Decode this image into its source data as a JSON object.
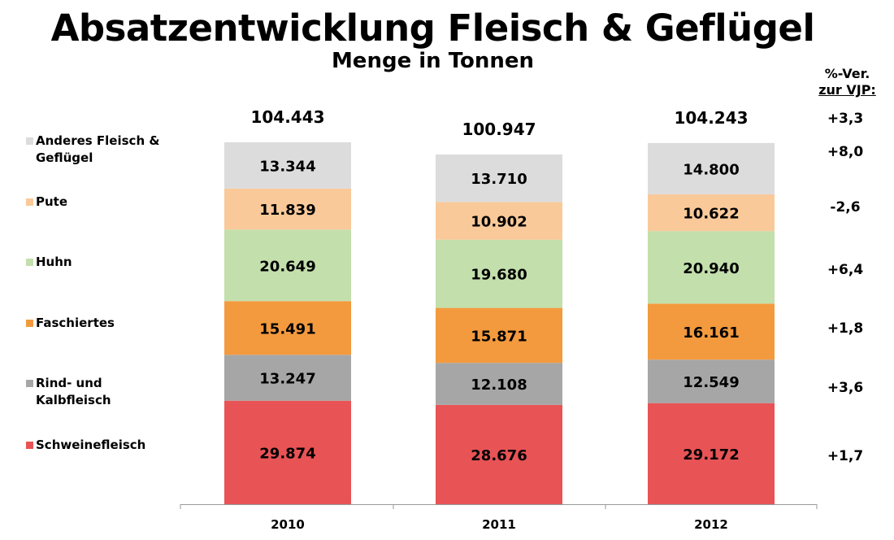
{
  "chart_data": {
    "type": "bar",
    "stacked": true,
    "title": "Absatzentwicklung Fleisch & Geflügel",
    "subtitle": "Menge in Tonnen",
    "categories": [
      "2010",
      "2011",
      "2012"
    ],
    "totals": [
      104443,
      100947,
      104243
    ],
    "series": [
      {
        "name": "Schweinefleisch",
        "color": "#e85355",
        "values": [
          29874,
          28676,
          29172
        ],
        "change": "+1,7"
      },
      {
        "name": "Rind- und Kalbfleisch",
        "color": "#a6a6a6",
        "values": [
          13247,
          12108,
          12549
        ],
        "change": "+3,6"
      },
      {
        "name": "Faschiertes",
        "color": "#f39a3e",
        "values": [
          15491,
          15871,
          16161
        ],
        "change": "+1,8"
      },
      {
        "name": "Huhn",
        "color": "#c3dfac",
        "values": [
          20649,
          19680,
          20940
        ],
        "change": "+6,4"
      },
      {
        "name": "Pute",
        "color": "#f9c99a",
        "values": [
          11839,
          10902,
          10622
        ],
        "change": "-2,6"
      },
      {
        "name": "Anderes Fleisch & Geflügel",
        "color": "#dcdcdc",
        "values": [
          13344,
          13710,
          14800
        ],
        "change": "+8,0"
      }
    ],
    "total_change": "+3,3",
    "change_header": [
      "%-Ver.",
      "zur VJP:"
    ],
    "legend": "left",
    "grid": false
  }
}
